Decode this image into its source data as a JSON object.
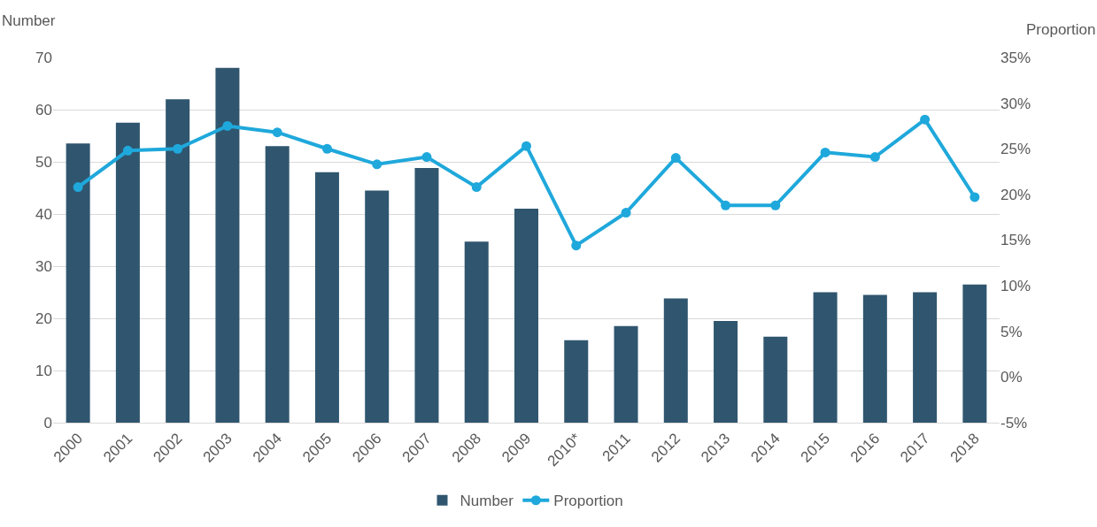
{
  "chart_data": {
    "type": "bar",
    "ylabel": "Number",
    "y2label": "Proportion",
    "categories": [
      "2000",
      "2001",
      "2002",
      "2003",
      "2004",
      "2005",
      "2006",
      "2007",
      "2008",
      "2009",
      "2010*",
      "2011",
      "2012",
      "2013",
      "2014",
      "2015",
      "2016",
      "2017",
      "2018"
    ],
    "series": [
      {
        "name": "Number",
        "color": "#30566f",
        "values": [
          53.5,
          57.5,
          62,
          68,
          53,
          48,
          44.5,
          48.8,
          34.7,
          41,
          15.8,
          18.5,
          23.8,
          19.5,
          16.5,
          25,
          24.5,
          25,
          26.5
        ]
      },
      {
        "name": "Proportion",
        "type": "line",
        "axis": "y2",
        "color": "#1fa8db",
        "marker": "circle",
        "values": [
          20.8,
          24.8,
          25,
          27.5,
          26.8,
          25,
          23.3,
          24.1,
          20.8,
          25.3,
          14.4,
          18,
          24,
          18.8,
          18.8,
          24.6,
          24.1,
          28.2,
          19.7
        ]
      }
    ],
    "ylim": [
      0,
      70
    ],
    "yticks": [
      0,
      10,
      20,
      30,
      40,
      50,
      60,
      70
    ],
    "y2lim": [
      -5,
      35
    ],
    "y2ticks": [
      {
        "value": -5,
        "label": "-5%"
      },
      {
        "value": 0,
        "label": "0%"
      },
      {
        "value": 5,
        "label": "5%"
      },
      {
        "value": 10,
        "label": "10%"
      },
      {
        "value": 15,
        "label": "15%"
      },
      {
        "value": 20,
        "label": "20%"
      },
      {
        "value": 25,
        "label": "25%"
      },
      {
        "value": 30,
        "label": "30%"
      },
      {
        "value": 35,
        "label": "35%"
      }
    ],
    "grid": "y",
    "legend": "bottom"
  }
}
